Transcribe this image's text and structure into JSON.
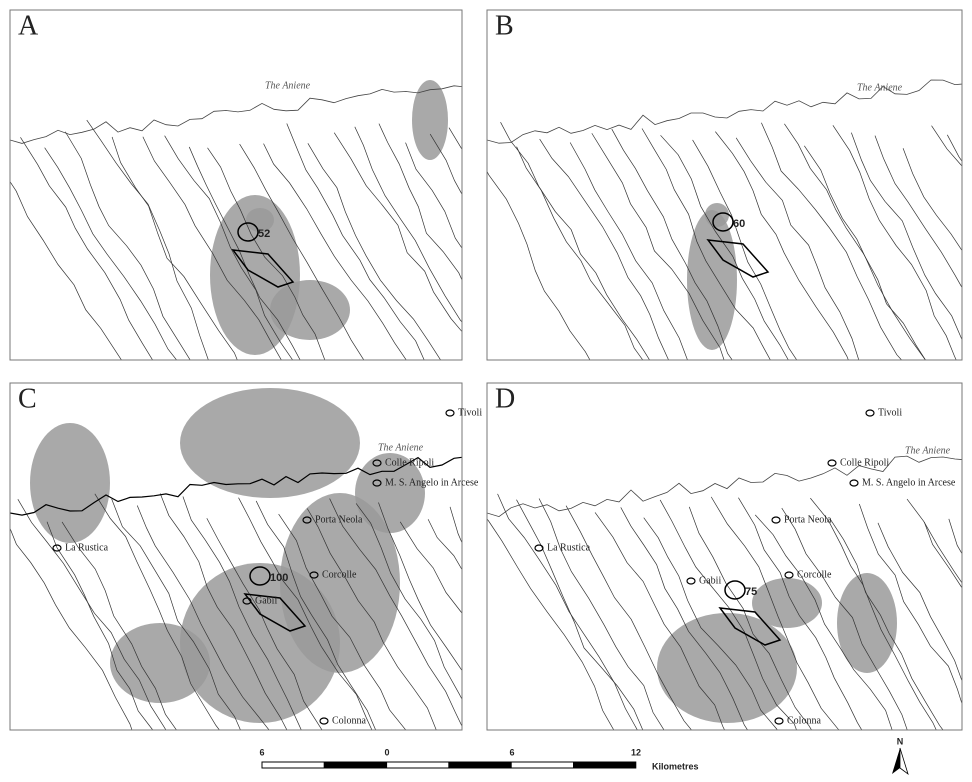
{
  "panels": [
    {
      "letter": "A",
      "river_label": "The Aniene",
      "point_label": "52",
      "places": []
    },
    {
      "letter": "B",
      "river_label": "The Aniene",
      "point_label": "60",
      "places": []
    },
    {
      "letter": "C",
      "river_label": "The Aniene",
      "point_label": "100",
      "places": [
        "Tivoli",
        "Colle Ripoli",
        "M. S. Angelo in Arcese",
        "Porta Neola",
        "La Rustica",
        "Corcolle",
        "Gabii",
        "Colonna"
      ]
    },
    {
      "letter": "D",
      "river_label": "The Aniene",
      "point_label": "75",
      "places": [
        "Tivoli",
        "Colle Ripoli",
        "M. S. Angelo in Arcese",
        "Porta Neola",
        "La Rustica",
        "Corcolle",
        "Gabii",
        "Colonna"
      ]
    }
  ],
  "scale_bar": {
    "labels": [
      "6",
      "0",
      "6",
      "12"
    ],
    "unit": "Kilometres"
  },
  "north": "N"
}
